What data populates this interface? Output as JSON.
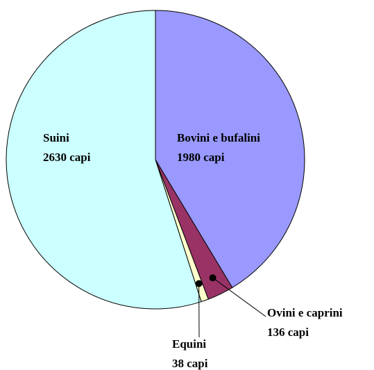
{
  "chart_data": {
    "type": "pie",
    "categories": [
      "Bovini e bufalini",
      "Ovini e caprini",
      "Equini",
      "Suini"
    ],
    "values": [
      1980,
      136,
      38,
      2630
    ],
    "value_labels": [
      "1980 capi",
      "136 capi",
      "38 capi",
      "2630 capi"
    ],
    "colors": [
      "#9999ff",
      "#993366",
      "#ffffcc",
      "#ccffff"
    ]
  }
}
